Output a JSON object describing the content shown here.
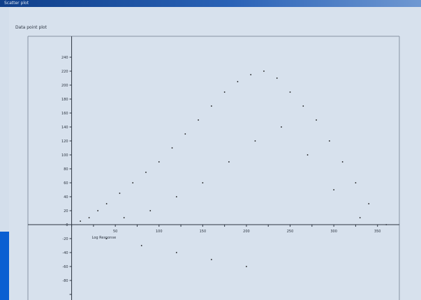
{
  "window": {
    "title": "Scatter plot"
  },
  "panel": {
    "title": "Data point plot"
  },
  "colors": {
    "points": "#111111",
    "axis": "#2c3440",
    "frame": "#8792a3",
    "accent": "#0a5fd2"
  },
  "chart_data": {
    "type": "scatter",
    "title": "",
    "xlabel": "Log Response",
    "ylabel": "",
    "xlim": [
      -50,
      375
    ],
    "ylim": [
      -110,
      270
    ],
    "x_ticks": [
      0,
      25,
      50,
      75,
      100,
      125,
      150,
      175,
      200,
      225,
      250,
      275,
      300,
      325,
      350
    ],
    "y_ticks": [
      -100,
      -80,
      -60,
      -40,
      -20,
      0,
      20,
      40,
      60,
      80,
      100,
      120,
      140,
      160,
      180,
      200,
      220,
      240
    ],
    "x_tick_labels": [
      "50",
      "100",
      "150",
      "200",
      "250",
      "300",
      "350"
    ],
    "y_tick_labels": [
      "-80",
      "-60",
      "-40",
      "-20",
      "0",
      "20",
      "40",
      "60",
      "80",
      "100",
      "120",
      "140",
      "160",
      "180",
      "200",
      "220",
      "240"
    ],
    "grid": false,
    "legend": "none",
    "point_count_approx": 200000,
    "series": [
      {
        "points": [
          [
            10,
            5
          ],
          [
            20,
            10
          ],
          [
            30,
            20
          ],
          [
            40,
            30
          ],
          [
            55,
            45
          ],
          [
            70,
            60
          ],
          [
            85,
            75
          ],
          [
            100,
            90
          ],
          [
            115,
            110
          ],
          [
            130,
            130
          ],
          [
            145,
            150
          ],
          [
            160,
            170
          ],
          [
            175,
            190
          ],
          [
            190,
            205
          ],
          [
            205,
            215
          ],
          [
            220,
            220
          ],
          [
            235,
            210
          ],
          [
            250,
            190
          ],
          [
            265,
            170
          ],
          [
            280,
            150
          ],
          [
            295,
            120
          ],
          [
            310,
            90
          ],
          [
            325,
            60
          ],
          [
            340,
            30
          ],
          [
            60,
            10
          ],
          [
            90,
            20
          ],
          [
            120,
            40
          ],
          [
            150,
            60
          ],
          [
            180,
            90
          ],
          [
            210,
            120
          ],
          [
            240,
            140
          ],
          [
            270,
            100
          ],
          [
            300,
            50
          ],
          [
            330,
            10
          ],
          [
            360,
            0
          ],
          [
            40,
            -20
          ],
          [
            80,
            -30
          ],
          [
            120,
            -40
          ],
          [
            160,
            -50
          ],
          [
            200,
            -60
          ]
        ]
      }
    ]
  }
}
